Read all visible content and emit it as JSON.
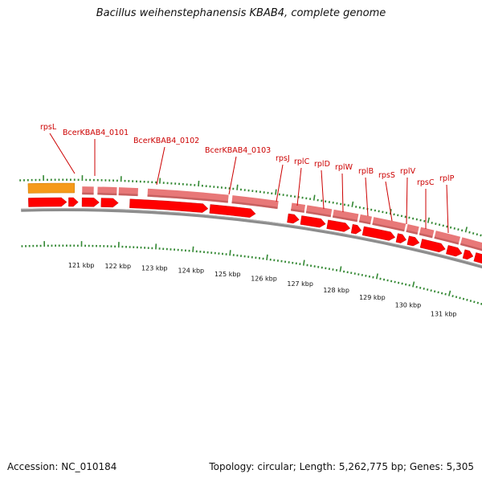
{
  "title": "Bacillus weihenstephanensis KBAB4, complete genome",
  "accession": "Accession: NC_010184",
  "stats": "Topology: circular; Length: 5,262,775 bp; Genes: 5,305",
  "colors": {
    "backbone": "#8c8c8c",
    "cds_forward": "#ff0000",
    "cds_reverse": "#e87878",
    "orange_feature": "#f59a1a",
    "gene_label": "#cc0000",
    "tick": "#338833"
  },
  "scale": {
    "unit": "kbp",
    "ticks": [
      {
        "value": 121,
        "label": "121 kbp"
      },
      {
        "value": 122,
        "label": "122 kbp"
      },
      {
        "value": 123,
        "label": "123 kbp"
      },
      {
        "value": 124,
        "label": "124 kbp"
      },
      {
        "value": 125,
        "label": "125 kbp"
      },
      {
        "value": 126,
        "label": "126 kbp"
      },
      {
        "value": 127,
        "label": "127 kbp"
      },
      {
        "value": 128,
        "label": "128 kbp"
      },
      {
        "value": 129,
        "label": "129 kbp"
      },
      {
        "value": 130,
        "label": "130 kbp"
      },
      {
        "value": 131,
        "label": "131 kbp"
      }
    ]
  },
  "gene_labels": [
    "rpsL",
    "BcerKBAB4_0101",
    "BcerKBAB4_0102",
    "BcerKBAB4_0103",
    "rpsJ",
    "rplC",
    "rplD",
    "rplW",
    "rplB",
    "rpsS",
    "rplV",
    "rpsC",
    "rplP"
  ],
  "features": {
    "orange": [
      {
        "start": 119.6,
        "end": 120.8
      }
    ],
    "reverse": [
      {
        "start": 121.0,
        "end": 121.3
      },
      {
        "start": 121.4,
        "end": 121.9
      },
      {
        "start": 121.95,
        "end": 122.45
      },
      {
        "start": 122.7,
        "end": 124.8
      },
      {
        "start": 124.9,
        "end": 126.1
      },
      {
        "start": 126.45,
        "end": 126.8
      },
      {
        "start": 126.85,
        "end": 127.5
      },
      {
        "start": 127.55,
        "end": 128.2
      },
      {
        "start": 128.25,
        "end": 128.55
      },
      {
        "start": 128.6,
        "end": 129.45
      },
      {
        "start": 129.5,
        "end": 129.8
      },
      {
        "start": 129.85,
        "end": 130.2
      },
      {
        "start": 130.25,
        "end": 130.9
      },
      {
        "start": 130.95,
        "end": 131.6
      },
      {
        "start": 131.65,
        "end": 131.9
      },
      {
        "start": 131.95,
        "end": 132.2
      }
    ],
    "forward": [
      {
        "start": 119.6,
        "end": 120.6
      },
      {
        "start": 120.65,
        "end": 120.9
      },
      {
        "start": 121.0,
        "end": 121.45
      },
      {
        "start": 121.5,
        "end": 121.95
      },
      {
        "start": 122.25,
        "end": 124.3
      },
      {
        "start": 124.35,
        "end": 125.55
      },
      {
        "start": 126.4,
        "end": 126.7
      },
      {
        "start": 126.75,
        "end": 127.4
      },
      {
        "start": 127.45,
        "end": 128.05
      },
      {
        "start": 128.1,
        "end": 128.35
      },
      {
        "start": 128.4,
        "end": 129.25
      },
      {
        "start": 129.3,
        "end": 129.55
      },
      {
        "start": 129.6,
        "end": 129.9
      },
      {
        "start": 129.95,
        "end": 130.6
      },
      {
        "start": 130.65,
        "end": 131.05
      },
      {
        "start": 131.1,
        "end": 131.35
      },
      {
        "start": 131.4,
        "end": 132.0
      }
    ]
  }
}
